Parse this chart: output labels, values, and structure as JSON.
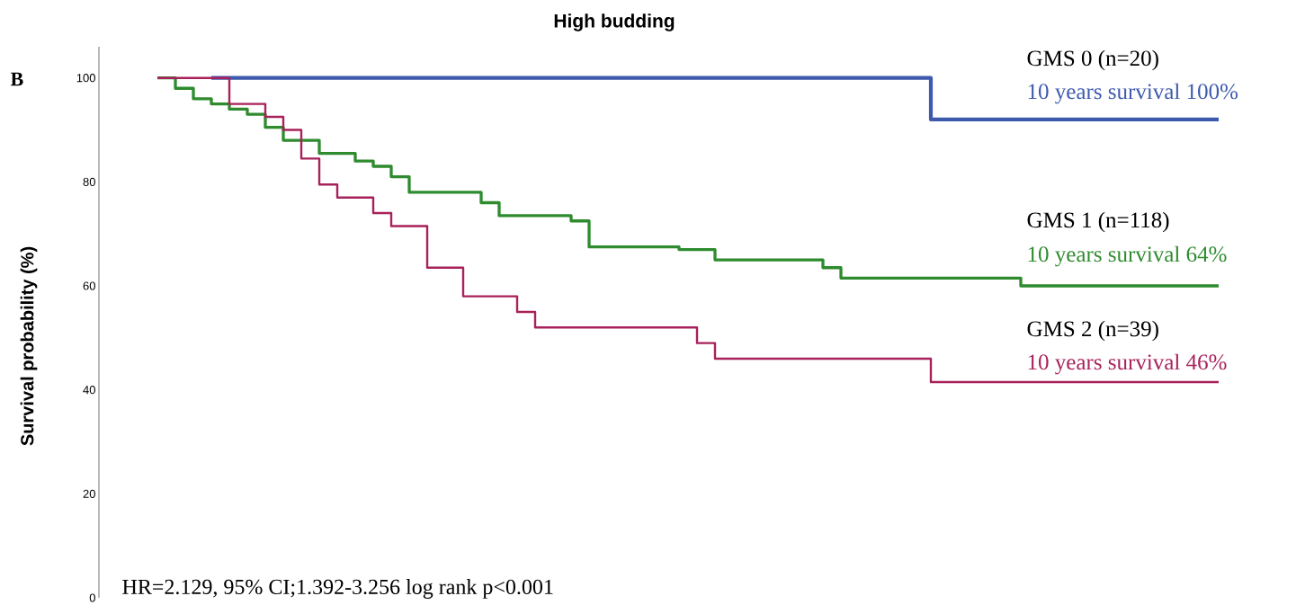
{
  "chart_data": {
    "type": "step",
    "title": "High budding",
    "ylabel": "Survival probability (%)",
    "categories": [
      null,
      null,
      null,
      null,
      null,
      null,
      null,
      null,
      null,
      null,
      null,
      null,
      null,
      null,
      null,
      null,
      null,
      null,
      null,
      null,
      null,
      null,
      null,
      null,
      null,
      null,
      null,
      null,
      null,
      null,
      null,
      null,
      null,
      null,
      null,
      null,
      null,
      null,
      null,
      null,
      null,
      null,
      null,
      null,
      null,
      null,
      null,
      null,
      null,
      null,
      null,
      null,
      null,
      null,
      null,
      null,
      null,
      null,
      null,
      null
    ],
    "series": [
      {
        "name": "GMS 0 (n=20)",
        "color": "#3e5aad",
        "values": [
          null,
          null,
          null,
          100,
          100,
          100,
          100,
          100,
          100,
          100,
          100,
          100,
          100,
          100,
          100,
          100,
          100,
          100,
          100,
          100,
          100,
          100,
          100,
          100,
          100,
          100,
          100,
          100,
          100,
          100,
          100,
          100,
          100,
          100,
          100,
          100,
          100,
          100,
          100,
          100,
          100,
          100,
          100,
          92,
          92,
          92,
          92,
          92,
          92,
          92,
          92,
          92,
          92,
          92,
          92,
          92,
          92,
          92,
          92,
          92
        ]
      },
      {
        "name": "GMS 1 (n=118)",
        "color": "#2e8b2e",
        "values": [
          100,
          98,
          96,
          95,
          94,
          93,
          90.5,
          88,
          88,
          85.5,
          85.5,
          84,
          83,
          81,
          78,
          78,
          78,
          78,
          76,
          73.5,
          73.5,
          73.5,
          73.5,
          72.5,
          67.5,
          67.5,
          67.5,
          67.5,
          67.5,
          67,
          67,
          65,
          65,
          65,
          65,
          65,
          65,
          63.5,
          61.5,
          61.5,
          61.5,
          61.5,
          61.5,
          61.5,
          61.5,
          61.5,
          61.5,
          61.5,
          60,
          60,
          60,
          60,
          60,
          60,
          60,
          60,
          60,
          60,
          60,
          60
        ]
      },
      {
        "name": "GMS 2 (n=39)",
        "color": "#a8215b",
        "values": [
          100,
          100,
          100,
          100,
          95,
          95,
          92.5,
          90,
          84.5,
          79.5,
          77,
          77,
          74,
          71.5,
          71.5,
          63.5,
          63.5,
          58,
          58,
          58,
          55,
          52,
          52,
          52,
          52,
          52,
          52,
          52,
          52,
          52,
          49,
          46,
          46,
          46,
          46,
          46,
          46,
          46,
          46,
          46,
          46,
          46,
          46,
          41.5,
          41.5,
          41.5,
          41.5,
          41.5,
          41.5,
          41.5,
          41.5,
          41.5,
          41.5,
          41.5,
          41.5,
          41.5,
          41.5,
          41.5,
          41.5,
          41.5
        ]
      }
    ],
    "annotations": [
      "10 years survival 100%",
      "10 years survival 64%",
      "10 years survival 46%",
      "HR=2.129, 95% CI;1.392-3.256 log rank p<0.001",
      "B"
    ],
    "ylim": [
      0,
      106
    ],
    "yticks": [
      0,
      20,
      40,
      60,
      80,
      100
    ],
    "tick_labels": "y"
  }
}
